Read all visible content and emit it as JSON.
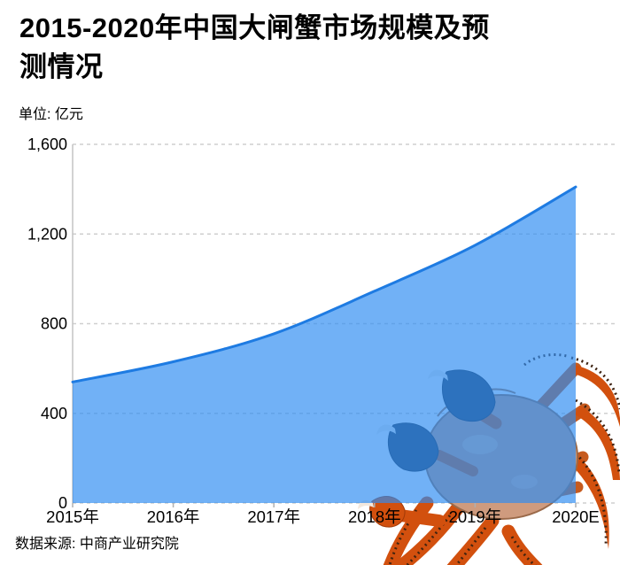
{
  "title_line1": "2015-2020年中国大闸蟹市场规模及预",
  "title_line2": "测情况",
  "unit_label": "单位: 亿元",
  "source": "数据来源: 中商产业研究院",
  "colors": {
    "area_fill_displayed": "#6fb3f7",
    "area_fill_rgba": "rgba(45,140,242,0.68)",
    "line": "#1e7be2",
    "gridline": "#cfcfcf",
    "axis_line": "#c4c4c4",
    "tick": "#b0b0b0",
    "text": "#000000",
    "crab_orange": "#d2500e",
    "crab_claw_dark": "#2d3c51"
  },
  "chart_data": {
    "type": "area",
    "title": "2015-2020年中国大闸蟹市场规模及预测情况",
    "unit": "亿元",
    "categories": [
      "2015年",
      "2016年",
      "2017年",
      "2018年",
      "2019年",
      "2020E"
    ],
    "values": [
      540,
      630,
      755,
      945,
      1150,
      1410
    ],
    "ylim": [
      0,
      1600
    ],
    "ytick_values": [
      0,
      400,
      800,
      1200,
      1600
    ],
    "ytick_labels": [
      "0",
      "400",
      "800",
      "1,200",
      "1,600"
    ],
    "grid": "horizontal dashed",
    "legend": "none",
    "line_color": "#1e7be2",
    "fill_color": "#6fb3f7"
  }
}
